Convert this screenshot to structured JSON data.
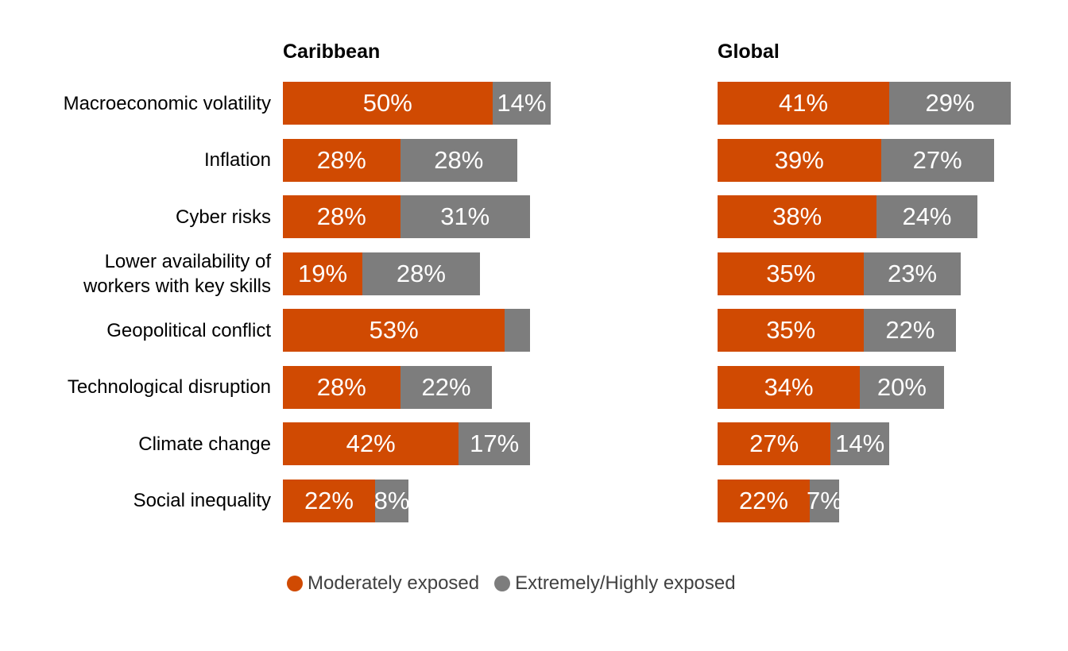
{
  "legend": {
    "items": [
      {
        "label": "Moderately exposed",
        "color": "#D04A02"
      },
      {
        "label": "Extremely/Highly exposed",
        "color": "#7D7D7D"
      }
    ]
  },
  "chart_data": {
    "type": "bar",
    "orientation": "horizontal",
    "stacked": true,
    "value_unit": "%",
    "grid": "off",
    "axis_labels_hidden": true,
    "legend_position": "bottom",
    "categories": [
      "Macroeconomic volatility",
      "Inflation",
      "Cyber risks",
      "Lower availability of workers with key skills",
      "Geopolitical conflict",
      "Technological disruption",
      "Climate change",
      "Social inequality"
    ],
    "category_display_lines": [
      [
        "Macroeconomic volatility"
      ],
      [
        "Inflation"
      ],
      [
        "Cyber risks"
      ],
      [
        "Lower availability of",
        "workers with key skills"
      ],
      [
        "Geopolitical conflict"
      ],
      [
        "Technological disruption"
      ],
      [
        "Climate change"
      ],
      [
        "Social inequality"
      ]
    ],
    "panels": [
      {
        "title": "Caribbean",
        "series": [
          {
            "name": "Moderately exposed",
            "color": "#D04A02",
            "values": [
              50,
              28,
              28,
              19,
              53,
              28,
              42,
              22
            ],
            "labels": [
              "50%",
              "28%",
              "28%",
              "19%",
              "53%",
              "28%",
              "42%",
              "22%"
            ]
          },
          {
            "name": "Extremely/Highly exposed",
            "color": "#7D7D7D",
            "values": [
              14,
              28,
              31,
              28,
              6,
              22,
              17,
              8
            ],
            "labels": [
              "14%",
              "28%",
              "31%",
              "28%",
              "",
              "22%",
              "17%",
              "8%"
            ]
          }
        ]
      },
      {
        "title": "Global",
        "series": [
          {
            "name": "Moderately exposed",
            "color": "#D04A02",
            "values": [
              41,
              39,
              38,
              35,
              35,
              34,
              27,
              22
            ],
            "labels": [
              "41%",
              "39%",
              "38%",
              "35%",
              "35%",
              "34%",
              "27%",
              "22%"
            ]
          },
          {
            "name": "Extremely/Highly exposed",
            "color": "#7D7D7D",
            "values": [
              29,
              27,
              24,
              23,
              22,
              20,
              14,
              7
            ],
            "labels": [
              "29%",
              "27%",
              "24%",
              "23%",
              "22%",
              "20%",
              "14%",
              "7%"
            ]
          }
        ]
      }
    ]
  }
}
